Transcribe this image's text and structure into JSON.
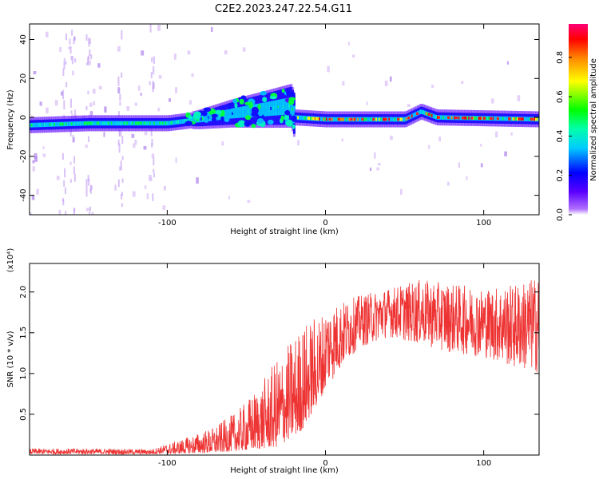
{
  "title": "C2E2.2023.247.22.54.G11",
  "chart_data": [
    {
      "type": "heatmap",
      "xlabel": "Height of straight line (km)",
      "ylabel": "Frequency (Hz)",
      "xlim": [
        -187,
        135
      ],
      "ylim": [
        -50,
        48
      ],
      "xticks": [
        -100,
        0,
        100
      ],
      "yticks": [
        -40,
        -20,
        0,
        20,
        40
      ],
      "colorbar": {
        "label": "Normalized spectral amplitude",
        "range": [
          0.0,
          0.97
        ],
        "ticks": [
          0.0,
          0.2,
          0.4,
          0.6,
          0.8
        ]
      },
      "ridge": [
        {
          "x": -187,
          "y": -4
        },
        {
          "x": -150,
          "y": -3
        },
        {
          "x": -100,
          "y": -3
        },
        {
          "x": -80,
          "y": -1
        },
        {
          "x": -60,
          "y": 2
        },
        {
          "x": -40,
          "y": 4
        },
        {
          "x": -22,
          "y": 6
        },
        {
          "x": -20,
          "y": 0
        },
        {
          "x": 0,
          "y": -1
        },
        {
          "x": 50,
          "y": -1
        },
        {
          "x": 60,
          "y": 3
        },
        {
          "x": 70,
          "y": 0
        },
        {
          "x": 135,
          "y": -1
        }
      ],
      "grid": false
    },
    {
      "type": "line",
      "xlabel": "Height of straight line (km)",
      "ylabel": "SNR (10 * v/v)",
      "yscale_label": "(x10⁴)",
      "xlim": [
        -187,
        135
      ],
      "ylim": [
        0,
        2.35
      ],
      "xticks": [
        -100,
        0,
        100
      ],
      "yticks": [
        0.5,
        1.0,
        1.5,
        2.0
      ],
      "ytick_labels": [
        "0.5",
        "1.0",
        "1.5",
        "2.0"
      ],
      "series": [
        {
          "color": "#ee3333",
          "envelope": [
            {
              "x": -187,
              "low": 0.01,
              "high": 0.08
            },
            {
              "x": -150,
              "low": 0.01,
              "high": 0.08
            },
            {
              "x": -110,
              "low": 0.01,
              "high": 0.07
            },
            {
              "x": -90,
              "low": 0.02,
              "high": 0.2
            },
            {
              "x": -70,
              "low": 0.03,
              "high": 0.35
            },
            {
              "x": -55,
              "low": 0.05,
              "high": 0.55
            },
            {
              "x": -40,
              "low": 0.08,
              "high": 0.9
            },
            {
              "x": -30,
              "low": 0.1,
              "high": 1.2
            },
            {
              "x": -15,
              "low": 0.3,
              "high": 1.6
            },
            {
              "x": 0,
              "low": 0.8,
              "high": 1.8
            },
            {
              "x": 20,
              "low": 1.3,
              "high": 1.95
            },
            {
              "x": 40,
              "low": 1.45,
              "high": 2.05
            },
            {
              "x": 60,
              "low": 1.35,
              "high": 2.15
            },
            {
              "x": 80,
              "low": 1.25,
              "high": 2.1
            },
            {
              "x": 100,
              "low": 1.2,
              "high": 2.05
            },
            {
              "x": 120,
              "low": 1.05,
              "high": 2.1
            },
            {
              "x": 135,
              "low": 1.0,
              "high": 2.2
            }
          ]
        }
      ],
      "grid": false
    }
  ]
}
